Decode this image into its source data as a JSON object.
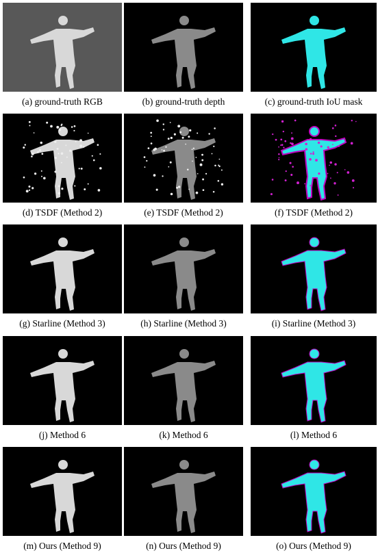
{
  "figure": {
    "panels": [
      {
        "caption": "(a) ground-truth RGB"
      },
      {
        "caption": "(b) ground-truth depth"
      },
      {
        "caption": "(c) ground-truth IoU mask"
      },
      {
        "caption": "(d) TSDF (Method 2)"
      },
      {
        "caption": "(e) TSDF (Method 2)"
      },
      {
        "caption": "(f) TSDF (Method 2)"
      },
      {
        "caption": "(g) Starline (Method 3)"
      },
      {
        "caption": "(h) Starline (Method 3)"
      },
      {
        "caption": "(i) Starline (Method 3)"
      },
      {
        "caption": "(j) Method 6"
      },
      {
        "caption": "(k) Method 6"
      },
      {
        "caption": "(l) Method 6"
      },
      {
        "caption": "(m) Ours (Method 9)"
      },
      {
        "caption": "(n) Ours (Method 9)"
      },
      {
        "caption": "(o) Ours (Method 9)"
      }
    ]
  }
}
